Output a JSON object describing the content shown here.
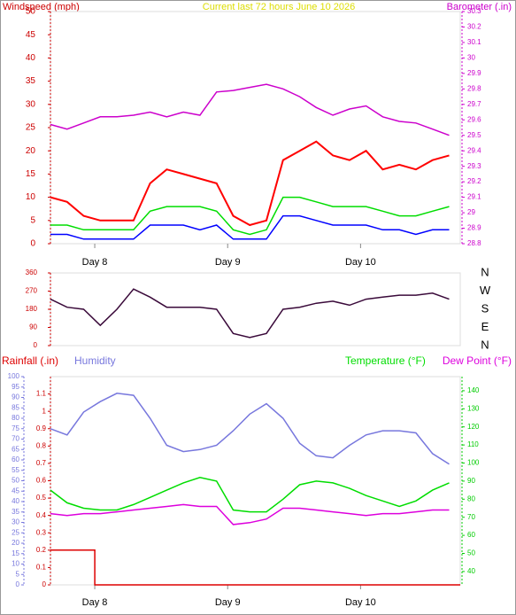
{
  "chart_data": [
    {
      "type": "line",
      "title": "Current last 72 hours June 10 2026",
      "ylabel": "Windspeed (mph)",
      "y2label": "Barometer (.in)",
      "x": [
        0,
        3,
        6,
        9,
        12,
        15,
        18,
        21,
        24,
        27,
        30,
        33,
        36,
        39,
        42,
        45,
        48,
        51,
        54,
        57,
        60,
        63,
        66,
        69,
        72
      ],
      "xlim": [
        0,
        74
      ],
      "xticks": [
        {
          "value": 8,
          "label": "Day 8"
        },
        {
          "value": 32,
          "label": "Day 9"
        },
        {
          "value": 56,
          "label": "Day 10"
        }
      ],
      "ylim": [
        0,
        50
      ],
      "yticks": [
        0,
        5,
        10,
        15,
        20,
        25,
        30,
        35,
        40,
        45,
        50
      ],
      "y2lim": [
        28.8,
        30.3
      ],
      "y2ticks": [
        28.8,
        28.9,
        29,
        29.1,
        29.2,
        29.3,
        29.4,
        29.5,
        29.6,
        29.7,
        29.8,
        29.9,
        30,
        30.1,
        30.2,
        30.3
      ],
      "series": [
        {
          "color": "#ff0000",
          "values": [
            10,
            9,
            6,
            5,
            5,
            5,
            13,
            16,
            15,
            14,
            13,
            6,
            4,
            5,
            18,
            20,
            22,
            19,
            18,
            20,
            16,
            17,
            16,
            18,
            19
          ]
        },
        {
          "color": "#00dd00",
          "values": [
            4,
            4,
            3,
            3,
            3,
            3,
            7,
            8,
            8,
            8,
            7,
            3,
            2,
            3,
            10,
            10,
            9,
            8,
            8,
            8,
            7,
            6,
            6,
            7,
            8
          ]
        },
        {
          "color": "#0000ff",
          "values": [
            2,
            2,
            1,
            1,
            1,
            1,
            4,
            4,
            4,
            3,
            4,
            1,
            1,
            1,
            6,
            6,
            5,
            4,
            4,
            4,
            3,
            3,
            2,
            3,
            3
          ]
        },
        {
          "color": "#cc00cc",
          "axis": "y2",
          "values": [
            29.57,
            29.54,
            29.58,
            29.62,
            29.62,
            29.63,
            29.65,
            29.62,
            29.65,
            29.63,
            29.78,
            29.79,
            29.81,
            29.83,
            29.8,
            29.75,
            29.68,
            29.63,
            29.67,
            29.69,
            29.62,
            29.59,
            29.58,
            29.54,
            29.5
          ]
        }
      ]
    },
    {
      "type": "line",
      "x": [
        0,
        3,
        6,
        9,
        12,
        15,
        18,
        21,
        24,
        27,
        30,
        33,
        36,
        39,
        42,
        45,
        48,
        51,
        54,
        57,
        60,
        63,
        66,
        69,
        72
      ],
      "xlim": [
        0,
        74
      ],
      "ylim": [
        0,
        360
      ],
      "yticks": [
        0,
        90,
        180,
        270,
        360
      ],
      "compass": [
        "N",
        "W",
        "S",
        "E",
        "N"
      ],
      "series": [
        {
          "color": "#3a0a3a",
          "values": [
            230,
            190,
            180,
            100,
            180,
            280,
            240,
            190,
            190,
            190,
            180,
            60,
            40,
            60,
            180,
            190,
            210,
            220,
            200,
            230,
            240,
            250,
            250,
            260,
            230
          ]
        }
      ]
    },
    {
      "type": "line",
      "x": [
        0,
        3,
        6,
        9,
        12,
        15,
        18,
        21,
        24,
        27,
        30,
        33,
        36,
        39,
        42,
        45,
        48,
        51,
        54,
        57,
        60,
        63,
        66,
        69,
        72
      ],
      "xlim": [
        0,
        74
      ],
      "xticks": [
        {
          "value": 8,
          "label": "Day 8"
        },
        {
          "value": 32,
          "label": "Day 9"
        },
        {
          "value": 56,
          "label": "Day 10"
        }
      ],
      "ylim": [
        0,
        1.2
      ],
      "yticks": [
        0,
        0.1,
        0.2,
        0.3,
        0.4,
        0.5,
        0.6,
        0.7,
        0.8,
        0.9,
        1,
        1.1
      ],
      "y2lim": [
        32.6,
        147.8
      ],
      "y2ticks": [
        40,
        50,
        60,
        70,
        80,
        90,
        100,
        110,
        120,
        130,
        140
      ],
      "y3lim": [
        0,
        100
      ],
      "y3ticks": [
        0,
        5,
        10,
        15,
        20,
        25,
        30,
        35,
        40,
        45,
        50,
        55,
        60,
        65,
        70,
        75,
        80,
        85,
        90,
        95,
        100
      ],
      "series": [
        {
          "name": "Rainfall (.in)",
          "color": "#dd0000",
          "x": [
            0,
            8,
            8,
            74
          ],
          "values": [
            0.2,
            0.2,
            0,
            0
          ]
        },
        {
          "name": "Humidity",
          "color": "#7777dd",
          "axis": "y3",
          "values": [
            75,
            72,
            83,
            88,
            92,
            91,
            80,
            67,
            64,
            65,
            67,
            74,
            82,
            87,
            80,
            68,
            62,
            61,
            67,
            72,
            74,
            74,
            73,
            63,
            58
          ]
        },
        {
          "name": "Temperature (°F)",
          "color": "#00dd00",
          "axis": "y2",
          "values": [
            85,
            78,
            75,
            74,
            74,
            77,
            81,
            85,
            89,
            92,
            90,
            74,
            73,
            73,
            80,
            88,
            90,
            89,
            86,
            82,
            79,
            76,
            79,
            85,
            89
          ]
        },
        {
          "name": "Dew Point (°F)",
          "color": "#dd00dd",
          "axis": "y2",
          "values": [
            72,
            71,
            72,
            72,
            73,
            74,
            75,
            76,
            77,
            76,
            76,
            66,
            67,
            69,
            75,
            75,
            74,
            73,
            72,
            71,
            72,
            72,
            73,
            74,
            74
          ]
        }
      ]
    }
  ]
}
